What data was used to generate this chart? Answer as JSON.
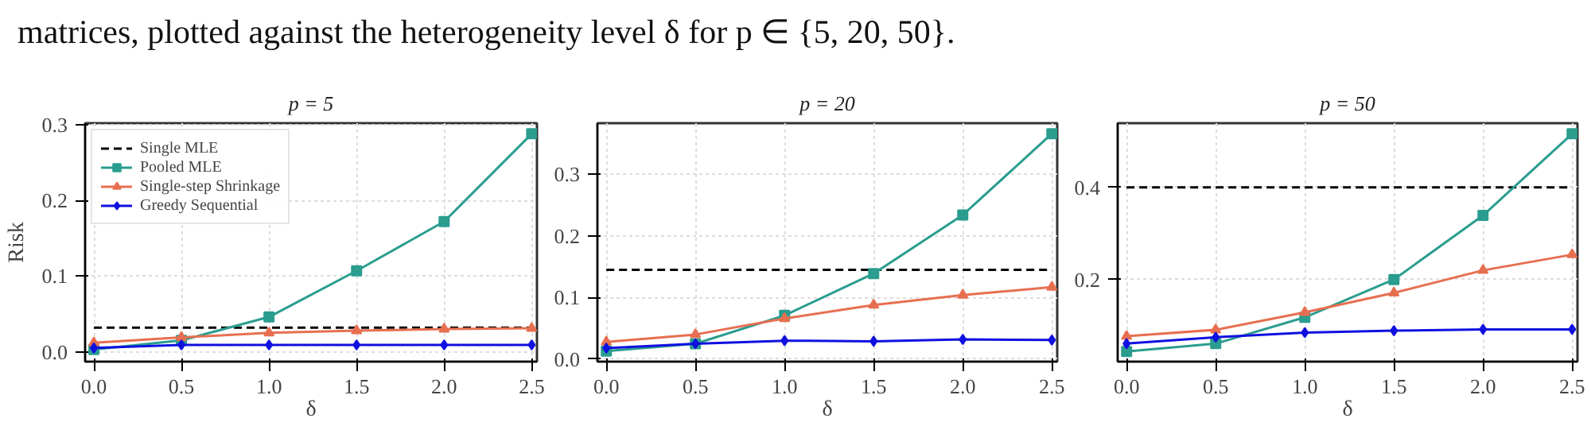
{
  "chart_data": [
    {
      "type": "line",
      "title": "p = 5",
      "xlabel": "δ",
      "ylabel": "Risk",
      "annotations": [
        "matrices, plotted against the heterogeneity level δ for p ∈ {5, 20, 50}."
      ],
      "legend": "top left",
      "grid": true,
      "x": [
        0,
        0.5,
        1.0,
        1.5,
        2.0,
        2.5
      ],
      "xlim": [
        -0.05,
        2.53
      ],
      "ylim": [
        -0.013,
        0.302
      ],
      "xticks": [
        {
          "value": 0,
          "label": "0.0"
        },
        0.5,
        {
          "value": 1,
          "label": "1.0"
        },
        1.5,
        {
          "value": 2,
          "label": "2.0"
        },
        2.5
      ],
      "yticks": [
        {
          "value": 0,
          "label": "0.0"
        },
        0.1,
        0.2,
        0.3
      ],
      "ref_lines": [
        {
          "axis": "y",
          "value": 0.032,
          "label": "Single MLE",
          "color": "#000000",
          "line_style": "dashed"
        }
      ],
      "series": [
        {
          "name": "Pooled MLE",
          "color": "#2a9d8f",
          "values": [
            0.003,
            0.015,
            0.046,
            0.107,
            0.172,
            0.288
          ],
          "line_style": "solid",
          "marker": "square"
        },
        {
          "name": "Single-step Shrinkage",
          "color": "#e76f51",
          "values": [
            0.012,
            0.019,
            0.025,
            0.028,
            0.03,
            0.031
          ],
          "line_style": "solid",
          "marker": "triangle"
        },
        {
          "name": "Greedy Sequential",
          "color": "#1010e0",
          "values": [
            0.005,
            0.009,
            0.009,
            0.009,
            0.009,
            0.009
          ],
          "line_style": "solid",
          "marker": "diamond"
        }
      ]
    },
    {
      "type": "line",
      "title": "p = 20",
      "xlabel": "δ",
      "grid": true,
      "x": [
        0,
        0.5,
        1.0,
        1.5,
        2.0,
        2.5
      ],
      "xlim": [
        -0.05,
        2.53
      ],
      "ylim": [
        -0.004,
        0.383
      ],
      "xticks": [
        {
          "value": 0,
          "label": "0.0"
        },
        0.5,
        {
          "value": 1,
          "label": "1.0"
        },
        1.5,
        {
          "value": 2,
          "label": "2.0"
        },
        2.5
      ],
      "yticks": [
        {
          "value": 0,
          "label": "0.0"
        },
        0.1,
        0.2,
        0.3
      ],
      "ref_lines": [
        {
          "axis": "y",
          "value": 0.145,
          "color": "#000000",
          "line_style": "dashed"
        }
      ],
      "series": [
        {
          "color": "#2a9d8f",
          "values": [
            0.013,
            0.025,
            0.071,
            0.139,
            0.234,
            0.366
          ],
          "line_style": "solid",
          "marker": "square"
        },
        {
          "color": "#e76f51",
          "values": [
            0.028,
            0.04,
            0.066,
            0.088,
            0.104,
            0.117
          ],
          "line_style": "solid",
          "marker": "triangle"
        },
        {
          "color": "#1010e0",
          "values": [
            0.018,
            0.025,
            0.03,
            0.029,
            0.032,
            0.031
          ],
          "line_style": "solid",
          "marker": "diamond"
        }
      ]
    },
    {
      "type": "line",
      "title": "p = 50",
      "xlabel": "δ",
      "grid": true,
      "x": [
        0,
        0.5,
        1.0,
        1.5,
        2.0,
        2.5
      ],
      "xlim": [
        -0.05,
        2.53
      ],
      "ylim": [
        0.022,
        0.539
      ],
      "xticks": [
        {
          "value": 0,
          "label": "0.0"
        },
        0.5,
        {
          "value": 1,
          "label": "1.0"
        },
        1.5,
        {
          "value": 2,
          "label": "2.0"
        },
        2.5
      ],
      "yticks": [
        0.2,
        0.4
      ],
      "ref_lines": [
        {
          "axis": "y",
          "value": 0.4,
          "color": "#000000",
          "line_style": "dashed"
        }
      ],
      "series": [
        {
          "color": "#2a9d8f",
          "values": [
            0.044,
            0.061,
            0.118,
            0.2,
            0.339,
            0.516
          ],
          "line_style": "solid",
          "marker": "square"
        },
        {
          "color": "#e76f51",
          "values": [
            0.077,
            0.091,
            0.129,
            0.171,
            0.22,
            0.254
          ],
          "line_style": "solid",
          "marker": "triangle"
        },
        {
          "color": "#1010e0",
          "values": [
            0.061,
            0.075,
            0.085,
            0.089,
            0.092,
            0.092
          ],
          "line_style": "solid",
          "marker": "diamond"
        }
      ]
    }
  ]
}
